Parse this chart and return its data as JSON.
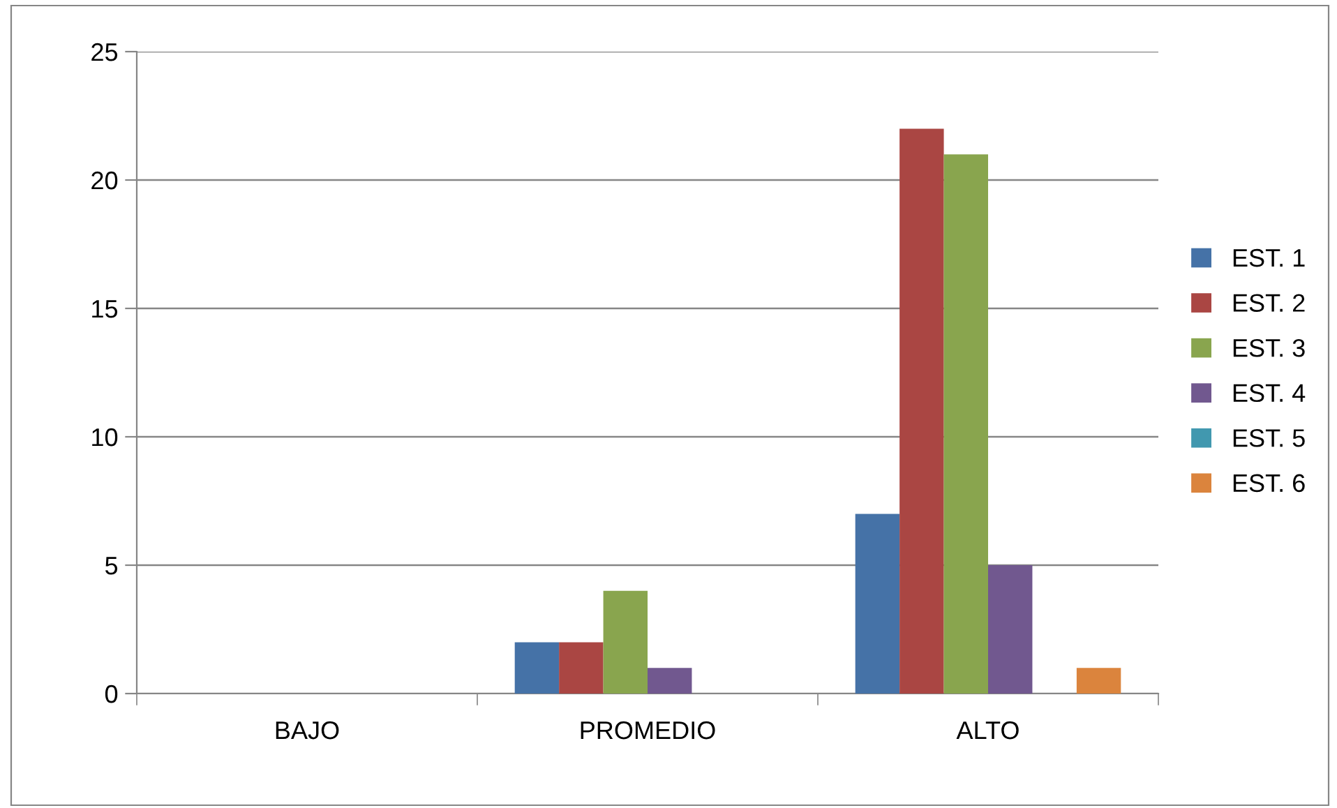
{
  "chart_data": {
    "type": "bar",
    "categories": [
      "BAJO",
      "PROMEDIO",
      "ALTO"
    ],
    "series": [
      {
        "name": "EST. 1",
        "color": "#4572a7",
        "values": [
          0,
          2,
          7
        ]
      },
      {
        "name": "EST. 2",
        "color": "#aa4643",
        "values": [
          0,
          2,
          22
        ]
      },
      {
        "name": "EST. 3",
        "color": "#89a54e",
        "values": [
          0,
          4,
          21
        ]
      },
      {
        "name": "EST. 4",
        "color": "#71588f",
        "values": [
          0,
          1,
          5
        ]
      },
      {
        "name": "EST. 5",
        "color": "#4198af",
        "values": [
          0,
          0,
          0
        ]
      },
      {
        "name": "EST. 6",
        "color": "#db843d",
        "values": [
          0,
          0,
          1
        ]
      }
    ],
    "ylim": [
      0,
      25
    ],
    "yticks": [
      0,
      5,
      10,
      15,
      20,
      25
    ],
    "grid": "y",
    "legend": "right"
  }
}
